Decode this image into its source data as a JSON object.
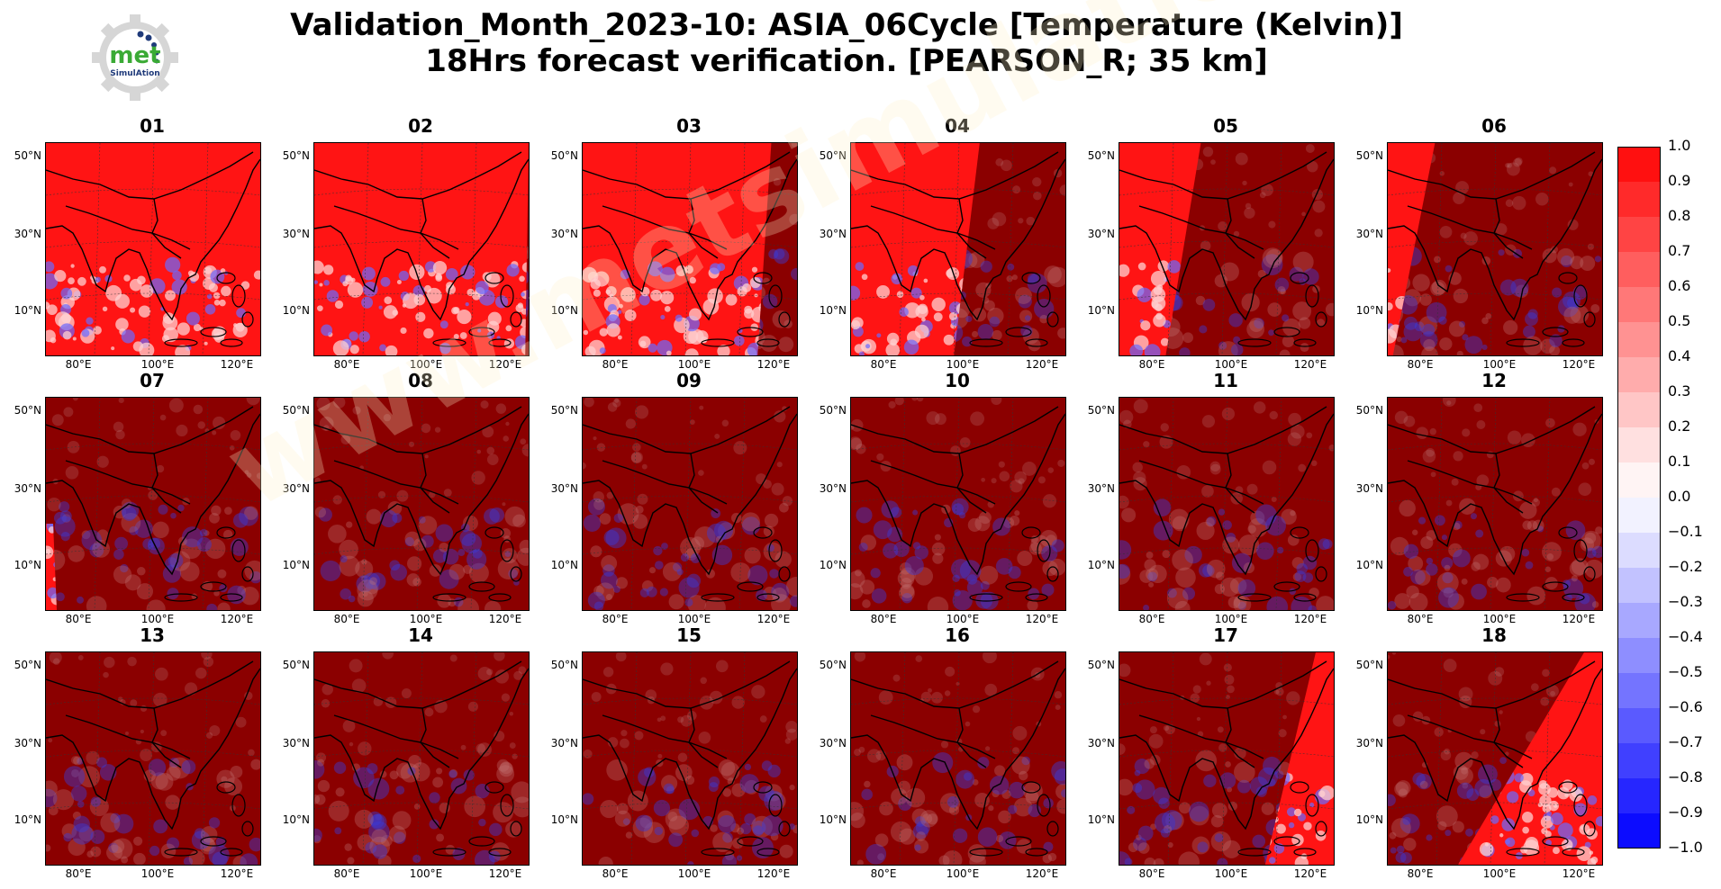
{
  "title": {
    "line1": "Validation_Month_2023-10: ASIA_06Cycle [Temperature (Kelvin)]",
    "line2": "18Hrs forecast verification.  [PEARSON_R; 35 km]"
  },
  "logo": {
    "text": "met",
    "subtext": "SimulAtion",
    "icon": "gear-logo-icon",
    "accent": "#3aaa35",
    "secondary": "#1f3a7a"
  },
  "watermark": "www.metsimulation.com",
  "lat_labels": [
    "50°N",
    "30°N",
    "10°N"
  ],
  "lon_labels": [
    "80°E",
    "100°E",
    "120°E"
  ],
  "panels": [
    {
      "label": "01",
      "bright_fraction": 1.0,
      "sweep": "none"
    },
    {
      "label": "02",
      "bright_fraction": 0.92,
      "sweep": "top-right"
    },
    {
      "label": "03",
      "bright_fraction": 0.78,
      "sweep": "top-right"
    },
    {
      "label": "04",
      "bright_fraction": 0.5,
      "sweep": "top-right"
    },
    {
      "label": "05",
      "bright_fraction": 0.28,
      "sweep": "top-right"
    },
    {
      "label": "06",
      "bright_fraction": 0.12,
      "sweep": "top-right"
    },
    {
      "label": "07",
      "bright_fraction": 0.02,
      "sweep": "left-edge"
    },
    {
      "label": "08",
      "bright_fraction": 0.0,
      "sweep": "none"
    },
    {
      "label": "09",
      "bright_fraction": 0.0,
      "sweep": "none"
    },
    {
      "label": "10",
      "bright_fraction": 0.0,
      "sweep": "none"
    },
    {
      "label": "11",
      "bright_fraction": 0.0,
      "sweep": "none"
    },
    {
      "label": "12",
      "bright_fraction": 0.0,
      "sweep": "none"
    },
    {
      "label": "13",
      "bright_fraction": 0.0,
      "sweep": "none"
    },
    {
      "label": "14",
      "bright_fraction": 0.0,
      "sweep": "none"
    },
    {
      "label": "15",
      "bright_fraction": 0.0,
      "sweep": "none"
    },
    {
      "label": "16",
      "bright_fraction": 0.0,
      "sweep": "none"
    },
    {
      "label": "17",
      "bright_fraction": 0.2,
      "sweep": "bottom-right"
    },
    {
      "label": "18",
      "bright_fraction": 0.42,
      "sweep": "bottom-right"
    }
  ],
  "colorbar": {
    "ticks": [
      "1.0",
      "0.9",
      "0.8",
      "0.7",
      "0.6",
      "0.5",
      "0.4",
      "0.3",
      "0.2",
      "0.1",
      "0.0",
      "−0.1",
      "−0.2",
      "−0.3",
      "−0.4",
      "−0.5",
      "−0.6",
      "−0.7",
      "−0.8",
      "−0.9",
      "−1.0"
    ],
    "colors": [
      "#ff1010",
      "#ff2a2a",
      "#ff4444",
      "#ff5e5e",
      "#ff7878",
      "#ff9292",
      "#ffacac",
      "#ffc6c6",
      "#ffe0e0",
      "#fff4f4",
      "#f2f2ff",
      "#dcdcff",
      "#c2c2ff",
      "#a8a8ff",
      "#8e8eff",
      "#7474ff",
      "#5a5aff",
      "#4040ff",
      "#2626ff",
      "#0c0cff"
    ]
  },
  "colors": {
    "dark_red": "#8b0000",
    "bright_red": "#ff1414",
    "land_pale": "#ffd0d0",
    "ocean_blue": "#3a3ad8"
  }
}
